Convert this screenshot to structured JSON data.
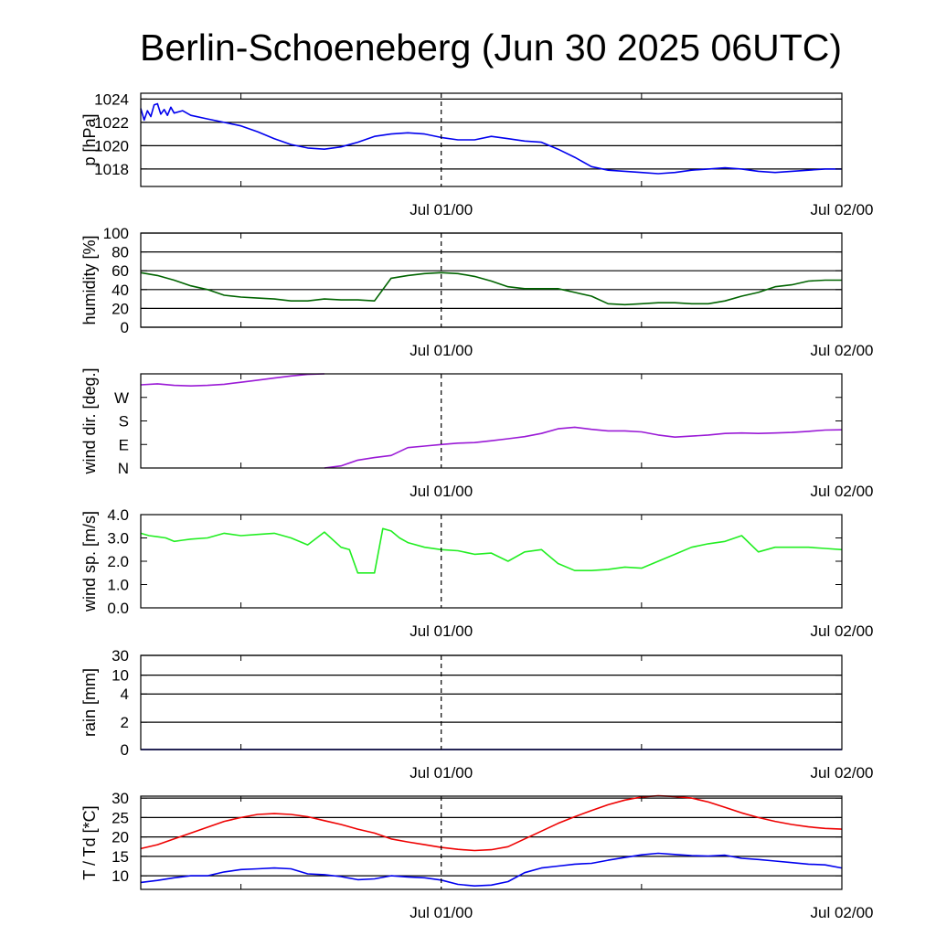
{
  "chart_data": {
    "title": "Berlin-Schoeneberg (Jun 30 2025 06UTC)",
    "x_tick_labels": [
      "Jul 01/00",
      "Jul 02/00"
    ],
    "panels": [
      {
        "type": "line",
        "ylabel": "p [hPa]",
        "ylim": [
          1016.5,
          1024.5
        ],
        "yticks": [
          1018,
          1020,
          1022,
          1024
        ],
        "ytick_labels": [
          "1018",
          "1020",
          "1022",
          "1024"
        ],
        "grid": true,
        "series": [
          {
            "color": "#0000ee",
            "x": [
              0,
              0.2,
              0.4,
              0.6,
              0.8,
              1.0,
              1.2,
              1.4,
              1.6,
              1.8,
              2.0,
              2.5,
              3,
              4,
              5,
              6,
              7,
              8,
              9,
              10,
              11,
              12,
              13,
              14,
              15,
              16,
              17,
              18,
              19,
              20,
              21,
              22,
              23,
              24,
              25,
              26,
              27,
              28,
              29,
              30,
              31,
              32,
              33,
              34,
              35,
              36,
              37,
              38,
              39,
              40,
              41,
              42
            ],
            "y": [
              1023.2,
              1022.2,
              1023.0,
              1022.5,
              1023.5,
              1023.6,
              1022.7,
              1023.1,
              1022.6,
              1023.3,
              1022.8,
              1023.0,
              1022.6,
              1022.3,
              1022.0,
              1021.7,
              1021.2,
              1020.6,
              1020.1,
              1019.8,
              1019.7,
              1019.9,
              1020.3,
              1020.8,
              1021.0,
              1021.1,
              1021.0,
              1020.7,
              1020.5,
              1020.5,
              1020.8,
              1020.6,
              1020.4,
              1020.3,
              1019.7,
              1019.0,
              1018.2,
              1017.9,
              1017.8,
              1017.7,
              1017.6,
              1017.7,
              1017.9,
              1018.0,
              1018.1,
              1018.0,
              1017.8,
              1017.7,
              1017.8,
              1017.9,
              1018.0,
              1018.0
            ]
          }
        ]
      },
      {
        "type": "line",
        "ylabel": "humidity [%]",
        "ylim": [
          0,
          100
        ],
        "yticks": [
          0,
          20,
          40,
          60,
          80,
          100
        ],
        "ytick_labels": [
          "0",
          "20",
          "40",
          "60",
          "80",
          "100"
        ],
        "grid": true,
        "series": [
          {
            "color": "#006400",
            "x": [
              0,
              1,
              2,
              3,
              4,
              5,
              6,
              7,
              8,
              9,
              10,
              11,
              12,
              13,
              14,
              15,
              16,
              17,
              18,
              19,
              20,
              21,
              22,
              23,
              24,
              25,
              26,
              27,
              28,
              29,
              30,
              31,
              32,
              33,
              34,
              35,
              36,
              37,
              38,
              39,
              40,
              41,
              42
            ],
            "y": [
              58,
              55,
              50,
              44,
              40,
              34,
              32,
              31,
              30,
              28,
              28,
              30,
              29,
              29,
              28,
              52,
              55,
              57,
              58,
              57,
              54,
              49,
              43,
              41,
              41,
              41,
              37,
              33,
              25,
              24,
              25,
              26,
              26,
              25,
              25,
              28,
              33,
              37,
              43,
              45,
              49,
              50,
              50
            ]
          }
        ]
      },
      {
        "type": "line",
        "ylabel": "wind dir. [deg.]",
        "ylim": [
          0,
          360
        ],
        "yticks": [
          0,
          90,
          180,
          270
        ],
        "ytick_labels": [
          "N",
          "E",
          "S",
          "W"
        ],
        "grid": false,
        "series": [
          {
            "color": "#9a1ad6",
            "x": [
              0,
              1,
              2,
              3,
              4,
              5,
              6,
              7,
              8,
              9,
              10,
              11
            ],
            "y": [
              318,
              322,
              316,
              314,
              316,
              320,
              328,
              336,
              344,
              352,
              358,
              360
            ]
          },
          {
            "color": "#9a1ad6",
            "x": [
              11,
              12,
              13,
              14,
              15,
              16,
              17,
              18,
              19,
              20,
              21,
              22,
              23,
              24,
              25,
              26,
              27,
              28,
              29,
              30,
              31,
              32,
              33,
              34,
              35,
              36,
              37,
              38,
              39,
              40,
              41,
              42
            ],
            "y": [
              0,
              8,
              30,
              40,
              48,
              78,
              84,
              90,
              95,
              97,
              104,
              112,
              120,
              132,
              150,
              156,
              148,
              142,
              142,
              138,
              126,
              118,
              122,
              126,
              132,
              134,
              132,
              134,
              136,
              140,
              145,
              146
            ]
          }
        ]
      },
      {
        "type": "line",
        "ylabel": "wind sp. [m/s]",
        "ylim": [
          0,
          4
        ],
        "yticks": [
          0,
          1,
          2,
          3,
          4
        ],
        "ytick_labels": [
          "0.0",
          "1.0",
          "2.0",
          "3.0",
          "4.0"
        ],
        "grid": false,
        "series": [
          {
            "color": "#22ee22",
            "x": [
              0,
              0.5,
              1,
              1.5,
              2,
              2.5,
              3,
              4,
              5,
              6,
              7,
              8,
              9,
              10,
              11,
              12,
              12.5,
              13,
              14,
              14.5,
              15,
              15.5,
              16,
              17,
              18,
              19,
              20,
              21,
              22,
              23,
              24,
              25,
              26,
              27,
              28,
              29,
              30,
              31,
              32,
              33,
              34,
              35,
              36,
              37,
              38,
              39,
              40,
              41,
              42
            ],
            "y": [
              3.2,
              3.1,
              3.05,
              3.0,
              2.85,
              2.9,
              2.95,
              3.0,
              3.2,
              3.1,
              3.15,
              3.2,
              3.0,
              2.7,
              3.25,
              2.6,
              2.5,
              1.5,
              1.5,
              3.4,
              3.3,
              3.0,
              2.8,
              2.6,
              2.5,
              2.45,
              2.3,
              2.35,
              2.0,
              2.4,
              2.5,
              1.9,
              1.6,
              1.6,
              1.65,
              1.75,
              1.7,
              2.0,
              2.3,
              2.6,
              2.75,
              2.85,
              3.1,
              2.4,
              2.6,
              2.6,
              2.6,
              2.55,
              2.5
            ]
          }
        ]
      },
      {
        "type": "line",
        "ylabel": "rain [mm]",
        "scale": "nonlinear",
        "ylim": [
          0,
          30
        ],
        "yticks": [
          0,
          2,
          4,
          10,
          30
        ],
        "ytick_labels": [
          "0",
          "2",
          "4",
          "10",
          "30"
        ],
        "grid": true,
        "series": [
          {
            "color": "#0000ee",
            "x": [
              0,
              42
            ],
            "y": [
              0,
              0
            ]
          }
        ]
      },
      {
        "type": "line",
        "ylabel": "T / Td [*C]",
        "ylim": [
          6.5,
          30.5
        ],
        "yticks": [
          10,
          15,
          20,
          25,
          30
        ],
        "ytick_labels": [
          "10",
          "15",
          "20",
          "25",
          "30"
        ],
        "grid": true,
        "series": [
          {
            "color": "#ee0000",
            "x": [
              0,
              1,
              2,
              3,
              4,
              5,
              6,
              7,
              8,
              9,
              10,
              11,
              12,
              13,
              14,
              15,
              16,
              17,
              18,
              19,
              20,
              21,
              22,
              23,
              24,
              25,
              26,
              27,
              28,
              29,
              30,
              31,
              32,
              33,
              34,
              35,
              36,
              37,
              38,
              39,
              40,
              41,
              42
            ],
            "y": [
              17.0,
              18.0,
              19.5,
              21.0,
              22.5,
              24.0,
              25.0,
              25.8,
              26.0,
              25.8,
              25.2,
              24.2,
              23.2,
              22.0,
              21.0,
              19.5,
              18.7,
              18.0,
              17.3,
              16.8,
              16.5,
              16.7,
              17.5,
              19.5,
              21.5,
              23.5,
              25.2,
              26.8,
              28.3,
              29.5,
              30.3,
              30.6,
              30.4,
              30.0,
              29.0,
              27.6,
              26.2,
              25.0,
              24.0,
              23.2,
              22.6,
              22.2,
              22.0
            ]
          },
          {
            "color": "#0000ee",
            "x": [
              0,
              1,
              2,
              3,
              4,
              5,
              6,
              7,
              8,
              9,
              10,
              11,
              12,
              13,
              14,
              15,
              16,
              17,
              18,
              19,
              20,
              21,
              22,
              23,
              24,
              25,
              26,
              27,
              28,
              29,
              30,
              31,
              32,
              33,
              34,
              35,
              36,
              37,
              38,
              39,
              40,
              41,
              42
            ],
            "y": [
              8.3,
              8.8,
              9.5,
              10.0,
              10.0,
              11.0,
              11.6,
              11.8,
              12.0,
              11.8,
              10.5,
              10.3,
              9.8,
              9.0,
              9.2,
              10.0,
              9.7,
              9.5,
              8.9,
              7.8,
              7.4,
              7.6,
              8.5,
              10.8,
              12.0,
              12.5,
              13.0,
              13.2,
              14.0,
              14.7,
              15.4,
              15.8,
              15.5,
              15.2,
              15.1,
              15.3,
              14.5,
              14.2,
              13.8,
              13.4,
              13.0,
              12.8,
              12.0
            ]
          }
        ]
      }
    ]
  }
}
